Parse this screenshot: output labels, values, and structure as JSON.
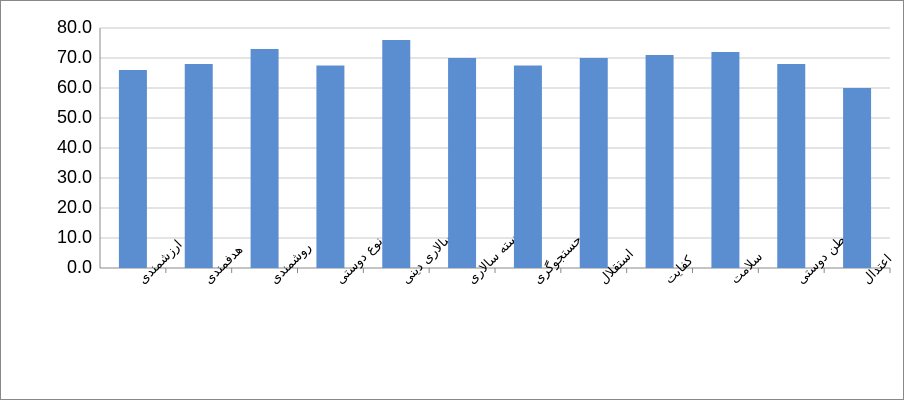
{
  "chart_data": {
    "type": "bar",
    "categories": [
      "ارزشمندی",
      "هدفمندی",
      "روشمندی",
      "نوع دوستی",
      "مردم سالاری دینی",
      "شایسته سالاری",
      "جستجوگری",
      "استقلال",
      "کفایت",
      "سلامت",
      "وطن دوستی",
      "اعتدال"
    ],
    "values": [
      66,
      68,
      73,
      67.5,
      76,
      70,
      67.5,
      70,
      71,
      72,
      68,
      60
    ],
    "color": "#5a8ed0",
    "ylim": [
      0,
      80
    ],
    "yticks": [
      {
        "value": 0,
        "label": "0.0"
      },
      {
        "value": 10,
        "label": "10.0"
      },
      {
        "value": 20,
        "label": "20.0"
      },
      {
        "value": 30,
        "label": "30.0"
      },
      {
        "value": 40,
        "label": "40.0"
      },
      {
        "value": 50,
        "label": "50.0"
      },
      {
        "value": 60,
        "label": "60.0"
      },
      {
        "value": 70,
        "label": "70.0"
      },
      {
        "value": 80,
        "label": "80.0"
      }
    ],
    "grid": true
  }
}
